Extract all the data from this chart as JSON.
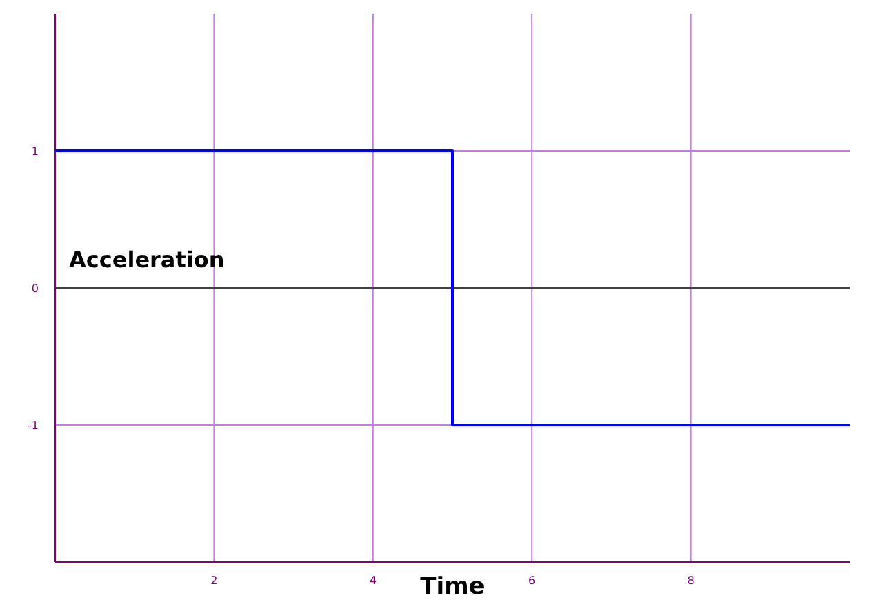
{
  "chart_data": {
    "type": "step",
    "xlabel": "Time",
    "ylabel": "Acceleration",
    "x": [
      0,
      5,
      10
    ],
    "series": [
      {
        "color": "#0000ff",
        "values": [
          1,
          -1,
          -1
        ]
      }
    ],
    "xlim": [
      0,
      10
    ],
    "xticks": [
      2,
      4,
      6,
      8
    ],
    "ylim": [
      -2,
      2
    ],
    "yticks": [
      -1,
      0,
      1
    ],
    "grid": true
  }
}
